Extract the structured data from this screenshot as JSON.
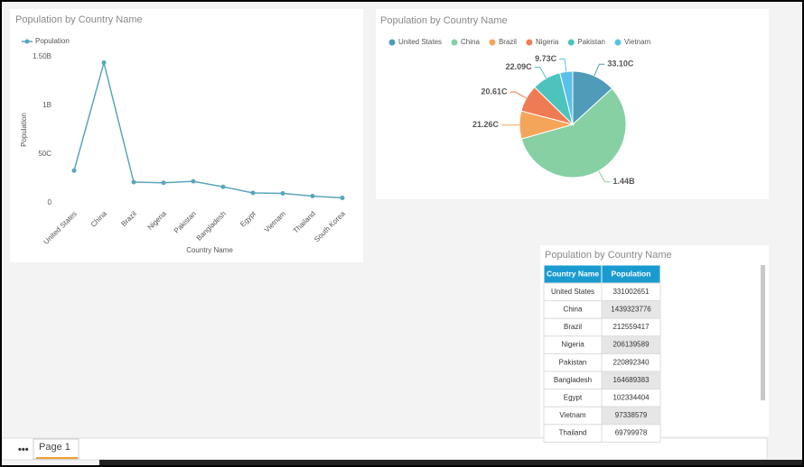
{
  "chart_data": [
    {
      "type": "line",
      "title": "Population by Country Name",
      "categories": [
        "United States",
        "China",
        "Brazil",
        "Nigeria",
        "Pakistan",
        "Bangladesh",
        "Egypt",
        "Vietnam",
        "Thailand",
        "South Korea"
      ],
      "series": [
        {
          "name": "Population",
          "color": "#5aa5bd",
          "values": [
            331002651,
            1439323776,
            212559417,
            206139589,
            220892340,
            164689383,
            102334404,
            97338579,
            69799978,
            51000000
          ]
        }
      ],
      "ylim": [
        0,
        1500000000
      ],
      "yticks": [
        0,
        {
          "value": 500000000,
          "label": "50C"
        },
        {
          "value": 1000000000,
          "label": "1B"
        },
        {
          "value": 1500000000,
          "label": "1.50B"
        }
      ],
      "xlabel": "Country Name",
      "ylabel": "Population",
      "legend": "top-left"
    },
    {
      "type": "pie",
      "title": "Population by Country Name",
      "categories": [
        "United States",
        "China",
        "Brazil",
        "Nigeria",
        "Pakistan",
        "Vietnam"
      ],
      "values": [
        331002651,
        1439323776,
        212559417,
        206139589,
        220892340,
        97338579
      ],
      "value_labels": [
        "33.10C",
        "1.44B",
        "21.26C",
        "20.61C",
        "22.09C",
        "9.73C"
      ],
      "colors": [
        "#4f9bb8",
        "#86d0a4",
        "#f5a55a",
        "#ef7b55",
        "#4dc3bd",
        "#5bc0e6"
      ],
      "legend": "top"
    }
  ],
  "table": {
    "title": "Population by Country Name",
    "header": [
      "Country Name",
      "Population"
    ],
    "rows": [
      [
        "United States",
        331002651
      ],
      [
        "China",
        1439323776
      ],
      [
        "Brazil",
        212559417
      ],
      [
        "Nigeria",
        206139589
      ],
      [
        "Pakistan",
        220892340
      ],
      [
        "Bangladesh",
        164689383
      ],
      [
        "Egypt",
        102334404
      ],
      [
        "Vietnam",
        97338579
      ],
      [
        "Thailand",
        69799978
      ]
    ]
  },
  "tabs": {
    "menu": "•••",
    "pages": [
      "Page 1"
    ]
  }
}
